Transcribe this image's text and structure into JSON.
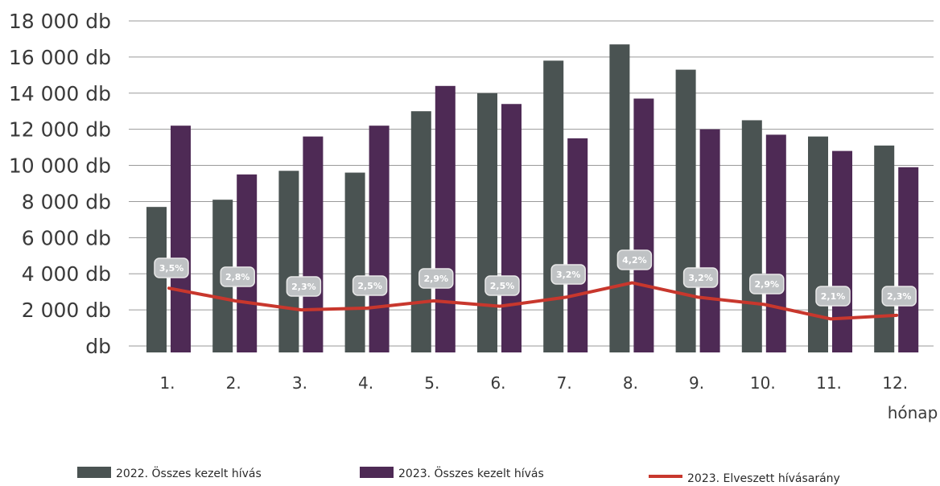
{
  "chart_data": {
    "type": "bar",
    "categories": [
      "1.",
      "2.",
      "3.",
      "4.",
      "5.",
      "6.",
      "7.",
      "8.",
      "9.",
      "10.",
      "11.",
      "12."
    ],
    "xlabel": "hónap",
    "ylabel": "",
    "ylim": [
      0,
      18000
    ],
    "y_ticks": [
      0,
      2000,
      4000,
      6000,
      8000,
      10000,
      12000,
      14000,
      16000,
      18000
    ],
    "y_tick_labels": [
      "db",
      "2 000 db",
      "4 000 db",
      "6 000 db",
      "8 000 db",
      "10 000 db",
      "12 000 db",
      "14 000 db",
      "16 000 db",
      "18 000 db"
    ],
    "grid": true,
    "legend_position": "bottom",
    "series": [
      {
        "name": "2022. Összes kezelt hívás",
        "type": "bar",
        "color": "#4a5352",
        "values": [
          7700,
          8100,
          9700,
          9600,
          13000,
          14000,
          15800,
          16700,
          15300,
          12500,
          11600,
          11100
        ]
      },
      {
        "name": "2023. Összes kezelt hívás",
        "type": "bar",
        "color": "#4e2a55",
        "values": [
          12200,
          9500,
          11600,
          12200,
          14400,
          13400,
          11500,
          13700,
          12000,
          11700,
          10800,
          9900
        ]
      },
      {
        "name": "2023. Elveszett hívásarány",
        "type": "line",
        "color": "#c8372d",
        "line_values": [
          3200,
          2500,
          2000,
          2100,
          2500,
          2200,
          2700,
          3500,
          2700,
          2300,
          1500,
          1700
        ],
        "data_labels": [
          "3,5%",
          "2,8%",
          "2,3%",
          "2,5%",
          "2,9%",
          "2,5%",
          "3,2%",
          "4,2%",
          "3,2%",
          "2,9%",
          "2,1%",
          "2,3%"
        ]
      }
    ]
  }
}
